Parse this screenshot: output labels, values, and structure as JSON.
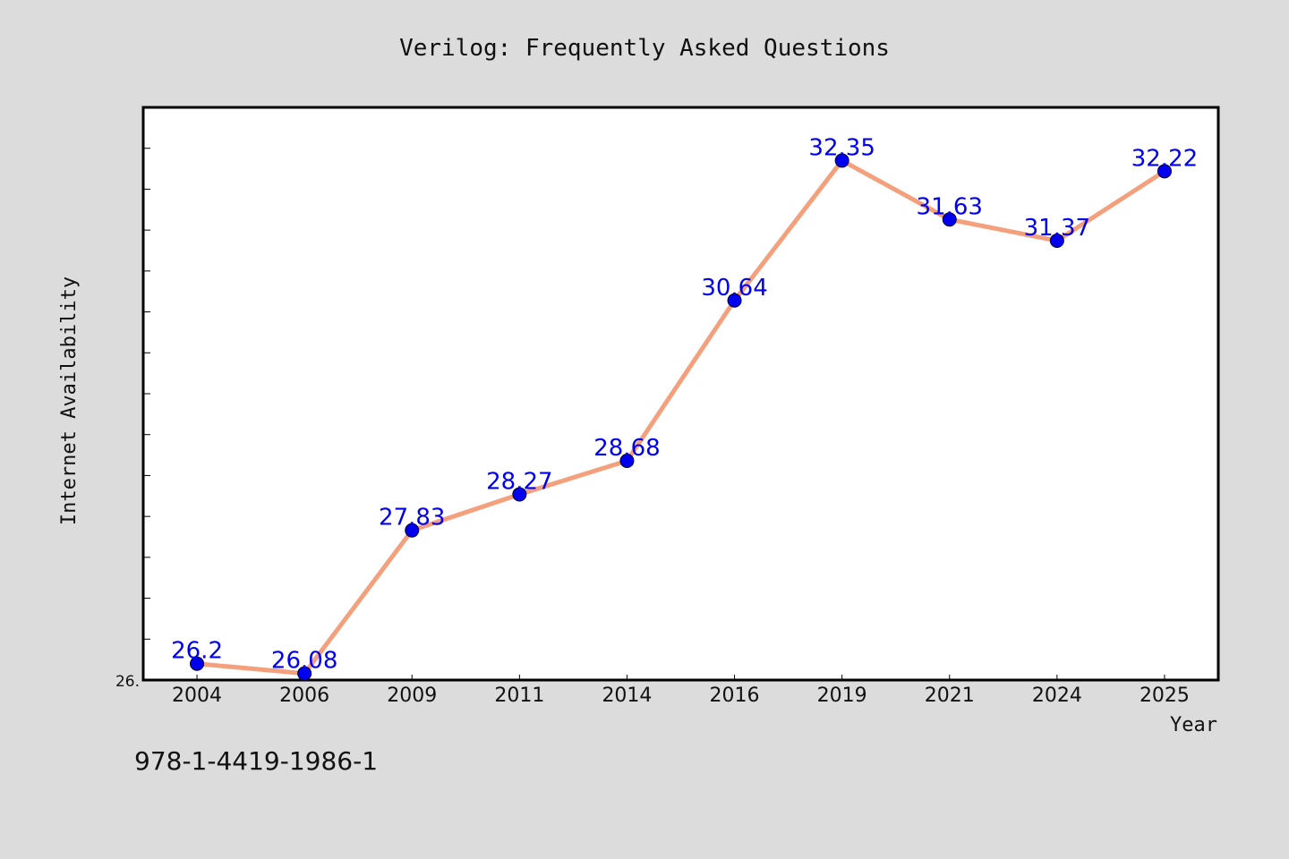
{
  "chart_data": {
    "type": "line",
    "title": "Verilog: Frequently Asked Questions",
    "xlabel": "Year",
    "ylabel": "Internet Availability",
    "categories": [
      "2004",
      "2006",
      "2009",
      "2011",
      "2014",
      "2016",
      "2019",
      "2021",
      "2024",
      "2025"
    ],
    "series": [
      {
        "values": [
          26.2,
          26.08,
          27.83,
          28.27,
          28.68,
          30.64,
          32.35,
          31.63,
          31.37,
          32.22
        ]
      }
    ],
    "data_labels": [
      "26.2",
      "26.08",
      "27.83",
      "28.27",
      "28.68",
      "30.64",
      "32.35",
      "31.63",
      "31.37",
      "32.22"
    ],
    "y_tick_label": "26.",
    "ylim": [
      26.0,
      33.0
    ],
    "grid": false,
    "legend": "none",
    "line_color": "#f4a07c",
    "marker_color": "#0000ee",
    "label_color": "#0000ee"
  },
  "footer": {
    "isbn": "978-1-4419-1986-1"
  }
}
